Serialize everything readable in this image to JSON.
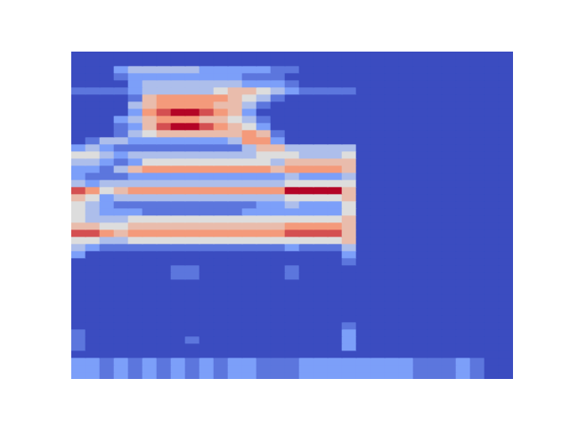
{
  "chart_data": {
    "type": "heatmap",
    "tick_labels": false,
    "cells": [
      [
        0,
        0,
        0,
        0,
        0,
        0,
        0,
        0,
        0,
        0,
        0,
        0,
        0,
        0,
        0,
        0,
        0,
        0,
        0,
        0,
        0,
        0,
        0,
        0,
        0,
        0,
        0,
        0,
        0,
        0,
        0
      ],
      [
        0,
        0,
        0,
        0,
        0,
        0,
        0,
        0,
        0,
        0,
        0,
        0,
        0,
        0,
        0,
        0,
        0,
        0,
        0,
        0,
        0,
        0,
        0,
        0,
        0,
        0,
        0,
        0,
        0,
        0,
        0
      ],
      [
        0,
        0,
        0,
        2,
        3,
        3,
        3,
        3,
        3,
        2,
        2,
        2,
        2,
        2,
        1,
        1,
        0,
        0,
        0,
        0,
        0,
        0,
        0,
        0,
        0,
        0,
        0,
        0,
        0,
        0,
        0
      ],
      [
        0,
        0,
        0,
        1,
        2,
        2,
        2,
        2,
        2,
        2,
        2,
        2,
        1,
        1,
        1,
        0,
        0,
        0,
        0,
        0,
        0,
        0,
        0,
        0,
        0,
        0,
        0,
        0,
        0,
        0,
        0
      ],
      [
        0,
        0,
        0,
        0,
        2,
        3,
        3,
        3,
        3,
        3,
        3,
        3,
        2,
        2,
        2,
        1,
        0,
        0,
        0,
        0,
        0,
        0,
        0,
        0,
        0,
        0,
        0,
        0,
        0,
        0,
        0
      ],
      [
        1,
        1,
        1,
        1,
        2,
        3,
        3,
        3,
        3,
        3,
        4,
        5,
        5,
        4,
        3,
        2,
        1,
        1,
        1,
        1,
        0,
        0,
        0,
        0,
        0,
        0,
        0,
        0,
        0,
        0,
        0
      ],
      [
        0,
        0,
        0,
        0,
        1,
        5,
        6,
        6,
        6,
        6,
        6,
        5,
        4,
        3,
        1,
        0,
        0,
        0,
        0,
        0,
        0,
        0,
        0,
        0,
        0,
        0,
        0,
        0,
        0,
        0,
        0
      ],
      [
        0,
        0,
        0,
        0,
        3,
        5,
        6,
        6,
        6,
        6,
        5,
        5,
        3,
        1,
        0,
        0,
        0,
        0,
        0,
        0,
        0,
        0,
        0,
        0,
        0,
        0,
        0,
        0,
        0,
        0,
        0
      ],
      [
        0,
        0,
        0,
        0,
        2,
        6,
        7,
        8,
        8,
        7,
        6,
        5,
        2,
        0,
        0,
        0,
        0,
        0,
        0,
        0,
        0,
        0,
        0,
        0,
        0,
        0,
        0,
        0,
        0,
        0,
        0
      ],
      [
        0,
        0,
        0,
        2,
        3,
        5,
        6,
        6,
        6,
        5,
        5,
        4,
        3,
        1,
        0,
        0,
        0,
        0,
        0,
        0,
        0,
        0,
        0,
        0,
        0,
        0,
        0,
        0,
        0,
        0,
        0
      ],
      [
        0,
        0,
        0,
        1,
        2,
        5,
        7,
        8,
        8,
        7,
        6,
        5,
        4,
        2,
        0,
        0,
        0,
        0,
        0,
        0,
        0,
        0,
        0,
        0,
        0,
        0,
        0,
        0,
        0,
        0,
        0
      ],
      [
        0,
        0,
        0,
        1,
        3,
        4,
        5,
        5,
        5,
        5,
        5,
        5,
        6,
        5,
        1,
        0,
        0,
        0,
        0,
        0,
        0,
        0,
        0,
        0,
        0,
        0,
        0,
        0,
        0,
        0,
        0
      ],
      [
        0,
        1,
        3,
        3,
        2,
        2,
        2,
        2,
        2,
        2,
        2,
        3,
        6,
        6,
        2,
        0,
        0,
        0,
        0,
        0,
        0,
        0,
        0,
        0,
        0,
        0,
        0,
        0,
        0,
        0,
        0
      ],
      [
        2,
        3,
        2,
        1,
        1,
        1,
        1,
        1,
        1,
        1,
        1,
        1,
        3,
        5,
        5,
        3,
        3,
        3,
        3,
        3,
        0,
        0,
        0,
        0,
        0,
        0,
        0,
        0,
        0,
        0,
        0
      ],
      [
        4,
        4,
        3,
        2,
        3,
        3,
        3,
        3,
        3,
        3,
        3,
        3,
        3,
        4,
        4,
        4,
        3,
        3,
        3,
        4,
        0,
        0,
        0,
        0,
        0,
        0,
        0,
        0,
        0,
        0,
        0
      ],
      [
        3,
        3,
        2,
        1,
        2,
        4,
        4,
        4,
        4,
        4,
        4,
        4,
        4,
        4,
        3,
        5,
        5,
        5,
        5,
        5,
        0,
        0,
        0,
        0,
        0,
        0,
        0,
        0,
        0,
        0,
        0
      ],
      [
        2,
        2,
        1,
        3,
        5,
        6,
        6,
        6,
        6,
        6,
        6,
        6,
        6,
        6,
        5,
        6,
        6,
        6,
        6,
        5,
        0,
        0,
        0,
        0,
        0,
        0,
        0,
        0,
        0,
        0,
        0
      ],
      [
        2,
        1,
        1,
        1,
        2,
        2,
        2,
        2,
        2,
        2,
        2,
        2,
        2,
        2,
        2,
        3,
        2,
        2,
        2,
        3,
        0,
        0,
        0,
        0,
        0,
        0,
        0,
        0,
        0,
        0,
        0
      ],
      [
        3,
        2,
        3,
        3,
        3,
        3,
        3,
        3,
        3,
        3,
        3,
        3,
        3,
        3,
        3,
        4,
        4,
        4,
        4,
        4,
        0,
        0,
        0,
        0,
        0,
        0,
        0,
        0,
        0,
        0,
        0
      ],
      [
        7,
        6,
        4,
        5,
        6,
        6,
        6,
        6,
        6,
        6,
        6,
        6,
        6,
        6,
        6,
        8,
        8,
        8,
        8,
        5,
        0,
        0,
        0,
        0,
        0,
        0,
        0,
        0,
        0,
        0,
        0
      ],
      [
        5,
        4,
        2,
        3,
        3,
        3,
        3,
        3,
        3,
        3,
        3,
        3,
        3,
        3,
        3,
        4,
        4,
        4,
        4,
        5,
        0,
        0,
        0,
        0,
        0,
        0,
        0,
        0,
        0,
        0,
        0
      ],
      [
        4,
        3,
        2,
        1,
        1,
        1,
        1,
        1,
        1,
        1,
        1,
        1,
        1,
        2,
        2,
        3,
        2,
        2,
        2,
        4,
        0,
        0,
        0,
        0,
        0,
        0,
        0,
        0,
        0,
        0,
        0
      ],
      [
        4,
        3,
        2,
        2,
        2,
        1,
        1,
        1,
        1,
        1,
        1,
        1,
        2,
        2,
        2,
        2,
        2,
        2,
        2,
        4,
        0,
        0,
        0,
        0,
        0,
        0,
        0,
        0,
        0,
        0,
        0
      ],
      [
        4,
        3,
        3,
        3,
        4,
        4,
        4,
        4,
        4,
        4,
        4,
        4,
        4,
        4,
        4,
        4,
        4,
        4,
        4,
        5,
        0,
        0,
        0,
        0,
        0,
        0,
        0,
        0,
        0,
        0,
        0
      ],
      [
        5,
        5,
        4,
        4,
        5,
        5,
        5,
        5,
        5,
        5,
        5,
        5,
        5,
        5,
        5,
        6,
        6,
        6,
        6,
        5,
        0,
        0,
        0,
        0,
        0,
        0,
        0,
        0,
        0,
        0,
        0
      ],
      [
        7,
        7,
        6,
        5,
        6,
        6,
        6,
        6,
        6,
        6,
        6,
        6,
        6,
        6,
        6,
        7,
        7,
        7,
        7,
        5,
        0,
        0,
        0,
        0,
        0,
        0,
        0,
        0,
        0,
        0,
        0
      ],
      [
        4,
        4,
        3,
        3,
        4,
        4,
        4,
        4,
        4,
        4,
        4,
        4,
        4,
        4,
        4,
        4,
        4,
        4,
        4,
        5,
        0,
        0,
        0,
        0,
        0,
        0,
        0,
        0,
        0,
        0,
        0
      ],
      [
        3,
        2,
        1,
        1,
        1,
        1,
        1,
        1,
        1,
        1,
        1,
        1,
        1,
        1,
        1,
        2,
        1,
        1,
        1,
        3,
        0,
        0,
        0,
        0,
        0,
        0,
        0,
        0,
        0,
        0,
        0
      ],
      [
        2,
        0,
        0,
        0,
        0,
        0,
        0,
        0,
        0,
        0,
        0,
        0,
        0,
        0,
        0,
        0,
        0,
        0,
        0,
        2,
        0,
        0,
        0,
        0,
        0,
        0,
        0,
        0,
        0,
        0,
        0
      ],
      [
        0,
        0,
        0,
        0,
        0,
        0,
        0,
        0,
        0,
        0,
        0,
        0,
        0,
        0,
        0,
        0,
        0,
        0,
        0,
        1,
        0,
        0,
        0,
        0,
        0,
        0,
        0,
        0,
        0,
        0,
        0
      ],
      [
        0,
        0,
        0,
        0,
        0,
        0,
        0,
        1,
        1,
        0,
        0,
        0,
        0,
        0,
        0,
        1,
        0,
        0,
        0,
        0,
        0,
        0,
        0,
        0,
        0,
        0,
        0,
        0,
        0,
        0,
        0
      ],
      [
        0,
        0,
        0,
        0,
        0,
        0,
        0,
        1,
        1,
        0,
        0,
        0,
        0,
        0,
        0,
        1,
        0,
        0,
        0,
        0,
        0,
        0,
        0,
        0,
        0,
        0,
        0,
        0,
        0,
        0,
        0
      ],
      [
        0,
        0,
        0,
        0,
        0,
        0,
        0,
        0,
        0,
        0,
        0,
        0,
        0,
        0,
        0,
        0,
        0,
        0,
        0,
        0,
        0,
        0,
        0,
        0,
        0,
        0,
        0,
        0,
        0,
        0,
        0
      ],
      [
        0,
        0,
        0,
        0,
        0,
        0,
        0,
        0,
        0,
        0,
        0,
        0,
        0,
        0,
        0,
        0,
        0,
        0,
        0,
        0,
        0,
        0,
        0,
        0,
        0,
        0,
        0,
        0,
        0,
        0,
        0
      ],
      [
        0,
        0,
        0,
        0,
        0,
        0,
        0,
        0,
        0,
        0,
        0,
        0,
        0,
        0,
        0,
        0,
        0,
        0,
        0,
        0,
        0,
        0,
        0,
        0,
        0,
        0,
        0,
        0,
        0,
        0,
        0
      ],
      [
        0,
        0,
        0,
        0,
        0,
        0,
        0,
        0,
        0,
        0,
        0,
        0,
        0,
        0,
        0,
        0,
        0,
        0,
        0,
        0,
        0,
        0,
        0,
        0,
        0,
        0,
        0,
        0,
        0,
        0,
        0
      ],
      [
        0,
        0,
        0,
        0,
        0,
        0,
        0,
        0,
        0,
        0,
        0,
        0,
        0,
        0,
        0,
        0,
        0,
        0,
        0,
        0,
        0,
        0,
        0,
        0,
        0,
        0,
        0,
        0,
        0,
        0,
        0
      ],
      [
        0,
        0,
        0,
        0,
        0,
        0,
        0,
        0,
        0,
        0,
        0,
        0,
        0,
        0,
        0,
        0,
        0,
        0,
        0,
        0,
        0,
        0,
        0,
        0,
        0,
        0,
        0,
        0,
        0,
        0,
        0
      ],
      [
        0,
        0,
        0,
        0,
        0,
        0,
        0,
        0,
        0,
        0,
        0,
        0,
        0,
        0,
        0,
        0,
        0,
        0,
        0,
        1,
        0,
        0,
        0,
        0,
        0,
        0,
        0,
        0,
        0,
        0,
        0
      ],
      [
        1,
        0,
        0,
        0,
        0,
        0,
        0,
        0,
        0,
        0,
        0,
        0,
        0,
        0,
        0,
        0,
        0,
        0,
        0,
        2,
        0,
        0,
        0,
        0,
        0,
        0,
        0,
        0,
        0,
        0,
        0
      ],
      [
        1,
        0,
        0,
        0,
        0,
        0,
        0,
        0,
        1,
        0,
        0,
        0,
        0,
        0,
        0,
        0,
        0,
        0,
        0,
        2,
        0,
        0,
        0,
        0,
        0,
        0,
        0,
        0,
        0,
        0,
        0
      ],
      [
        1,
        0,
        0,
        0,
        0,
        0,
        0,
        0,
        0,
        0,
        0,
        0,
        0,
        0,
        0,
        0,
        0,
        0,
        0,
        2,
        0,
        0,
        0,
        0,
        0,
        0,
        0,
        0,
        0,
        0,
        0
      ],
      [
        0,
        0,
        0,
        0,
        0,
        0,
        0,
        0,
        0,
        0,
        0,
        0,
        0,
        0,
        0,
        0,
        0,
        0,
        0,
        0,
        0,
        0,
        0,
        0,
        0,
        0,
        0,
        0,
        0,
        0,
        0
      ],
      [
        2,
        2,
        1,
        2,
        1,
        2,
        1,
        2,
        1,
        2,
        1,
        2,
        2,
        1,
        1,
        1,
        2,
        2,
        2,
        2,
        2,
        2,
        2,
        2,
        1,
        1,
        1,
        2,
        1,
        0,
        0
      ],
      [
        2,
        2,
        1,
        2,
        1,
        2,
        1,
        2,
        1,
        2,
        1,
        2,
        2,
        1,
        1,
        1,
        2,
        2,
        2,
        2,
        2,
        2,
        2,
        2,
        1,
        1,
        1,
        2,
        1,
        0,
        0
      ],
      [
        2,
        2,
        1,
        2,
        1,
        2,
        1,
        2,
        1,
        2,
        1,
        2,
        2,
        1,
        1,
        1,
        2,
        2,
        2,
        2,
        2,
        2,
        2,
        2,
        1,
        1,
        1,
        2,
        1,
        0,
        0
      ]
    ]
  }
}
